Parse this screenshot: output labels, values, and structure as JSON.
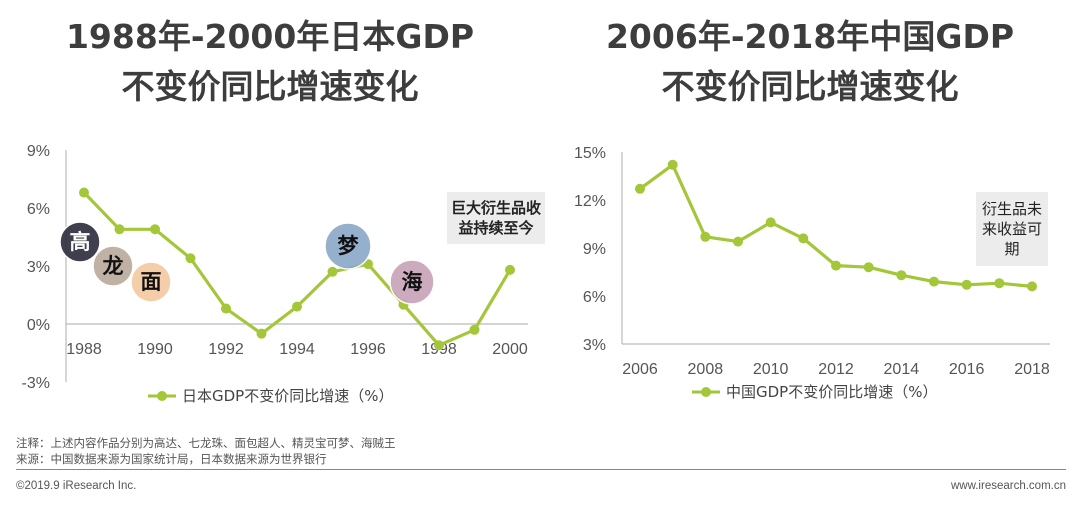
{
  "titles": {
    "left": [
      "1988年-2000年日本GDP",
      "不变价同比增速变化"
    ],
    "right": [
      "2006年-2018年中国GDP",
      "不变价同比增速变化"
    ]
  },
  "colors": {
    "line": "#a4c639",
    "title": "#3d3d3d",
    "axis": "#bbbbbb"
  },
  "chart_data": [
    {
      "type": "line",
      "x": [
        1988,
        1989,
        1990,
        1991,
        1992,
        1993,
        1994,
        1995,
        1996,
        1997,
        1998,
        1999,
        2000
      ],
      "series": [
        {
          "name": "日本GDP不变价同比增速（%）",
          "values": [
            6.8,
            4.9,
            4.9,
            3.4,
            0.8,
            -0.5,
            0.9,
            2.7,
            3.1,
            1.0,
            -1.1,
            -0.3,
            2.8
          ]
        }
      ],
      "xticks": [
        "1988",
        "1990",
        "1992",
        "1994",
        "1996",
        "1998",
        "2000"
      ],
      "yticks": [
        "9%",
        "6%",
        "3%",
        "0%",
        "-3%"
      ],
      "ylim": [
        -3,
        9
      ],
      "legend": "bottom",
      "annotation": "巨大衍生品收益持续至今",
      "image_labels": [
        "高",
        "龙",
        "面",
        "梦",
        "海"
      ]
    },
    {
      "type": "line",
      "x": [
        2006,
        2007,
        2008,
        2009,
        2010,
        2011,
        2012,
        2013,
        2014,
        2015,
        2016,
        2017,
        2018
      ],
      "series": [
        {
          "name": "中国GDP不变价同比增速（%）",
          "values": [
            12.7,
            14.2,
            9.7,
            9.4,
            10.6,
            9.6,
            7.9,
            7.8,
            7.3,
            6.9,
            6.7,
            6.8,
            6.6
          ]
        }
      ],
      "xticks": [
        "2006",
        "2008",
        "2010",
        "2012",
        "2014",
        "2016",
        "2018"
      ],
      "yticks": [
        "15%",
        "12%",
        "9%",
        "6%",
        "3%"
      ],
      "ylim": [
        3,
        15
      ],
      "legend": "bottom",
      "annotation": "衍生品未来收益可期"
    }
  ],
  "footer": {
    "note": "注释：上述内容作品分别为高达、七龙珠、面包超人、精灵宝可梦、海贼王",
    "source": "来源：中国数据来源为国家统计局，日本数据来源为世界银行",
    "copyright": "©2019.9 iResearch Inc.",
    "website": "www.iresearch.com.cn"
  }
}
